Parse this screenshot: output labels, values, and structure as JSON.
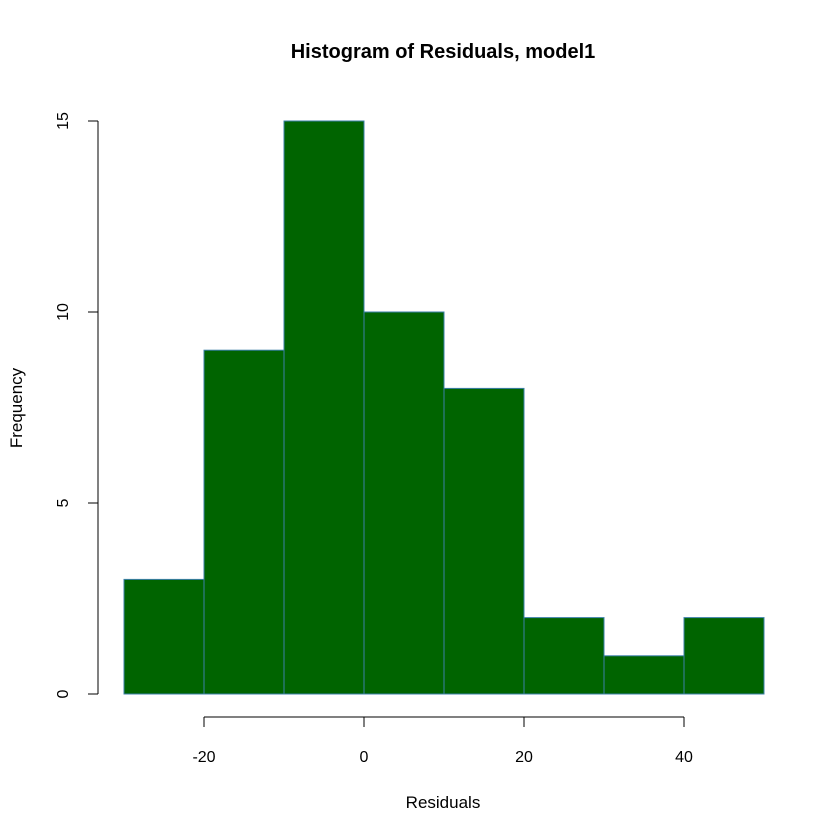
{
  "chart_data": {
    "type": "bar",
    "title": "Histogram of Residuals, model1",
    "xlabel": "Residuals",
    "ylabel": "Frequency",
    "bins": [
      {
        "from": -30,
        "to": -20,
        "count": 3
      },
      {
        "from": -20,
        "to": -10,
        "count": 9
      },
      {
        "from": -10,
        "to": 0,
        "count": 15
      },
      {
        "from": 0,
        "to": 10,
        "count": 10
      },
      {
        "from": 10,
        "to": 20,
        "count": 8
      },
      {
        "from": 20,
        "to": 30,
        "count": 2
      },
      {
        "from": 30,
        "to": 40,
        "count": 1
      },
      {
        "from": 40,
        "to": 50,
        "count": 2
      }
    ],
    "xlim": [
      -30,
      50
    ],
    "ylim": [
      0,
      15
    ],
    "x_ticks": [
      -20,
      0,
      20,
      40
    ],
    "y_ticks": [
      0,
      5,
      10,
      15
    ],
    "grid": false,
    "bar_fill": "#006400",
    "bar_border": "#3b7fa8"
  }
}
